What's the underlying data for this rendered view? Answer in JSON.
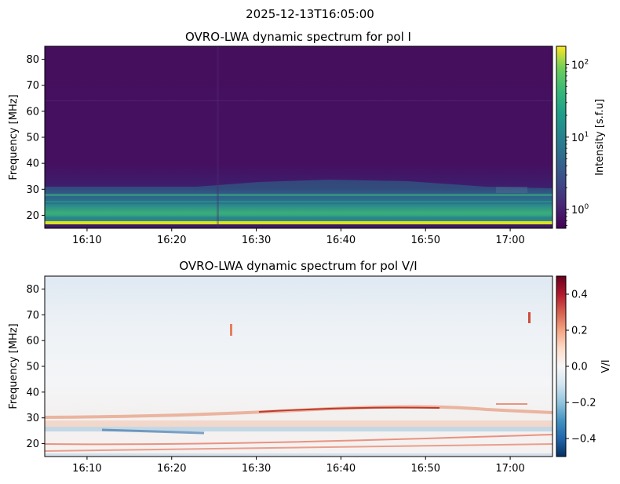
{
  "figure": {
    "suptitle": "2025-12-13T16:05:00"
  },
  "chart_data": [
    {
      "type": "heatmap",
      "title": "OVRO-LWA dynamic spectrum for pol I",
      "ylabel": "Frequency [MHz]",
      "xlabel": "",
      "x_range": [
        "16:05",
        "17:05"
      ],
      "x_ticks": [
        "16:10",
        "16:20",
        "16:30",
        "16:40",
        "16:50",
        "17:00"
      ],
      "ylim": [
        15,
        85
      ],
      "y_ticks": [
        20,
        30,
        40,
        50,
        60,
        70,
        80
      ],
      "colormap": "viridis",
      "colorbar": {
        "label": "Intensity [s.f.u]",
        "scale": "log",
        "range": [
          0.55,
          180
        ],
        "ticks": [
          {
            "value": 1,
            "base": "10",
            "exp": "0"
          },
          {
            "value": 10,
            "base": "10",
            "exp": "1"
          },
          {
            "value": 100,
            "base": "10",
            "exp": "2"
          }
        ]
      },
      "features": [
        {
          "description": "bright band",
          "freq_range": [
            16.2,
            17.3
          ],
          "intensity": 180
        },
        {
          "description": "emission band",
          "freq_range": [
            17.5,
            31
          ],
          "intensity": 8
        },
        {
          "description": "background",
          "freq_range": [
            31,
            85
          ],
          "intensity": 0.7
        }
      ]
    },
    {
      "type": "heatmap",
      "title": "OVRO-LWA dynamic spectrum for pol V/I",
      "ylabel": "Frequency [MHz]",
      "xlabel": "",
      "x_range": [
        "16:05",
        "17:05"
      ],
      "x_ticks": [
        "16:10",
        "16:20",
        "16:30",
        "16:40",
        "16:50",
        "17:00"
      ],
      "ylim": [
        15,
        85
      ],
      "y_ticks": [
        20,
        30,
        40,
        50,
        60,
        70,
        80
      ],
      "colormap": "RdBu_r",
      "colorbar": {
        "label": "V/I",
        "scale": "linear",
        "range": [
          -0.5,
          0.5
        ],
        "ticks": [
          "0.4",
          "0.2",
          "0.0",
          "−0.2",
          "−0.4"
        ],
        "tick_values": [
          0.4,
          0.2,
          0.0,
          -0.2,
          -0.4
        ]
      }
    }
  ]
}
